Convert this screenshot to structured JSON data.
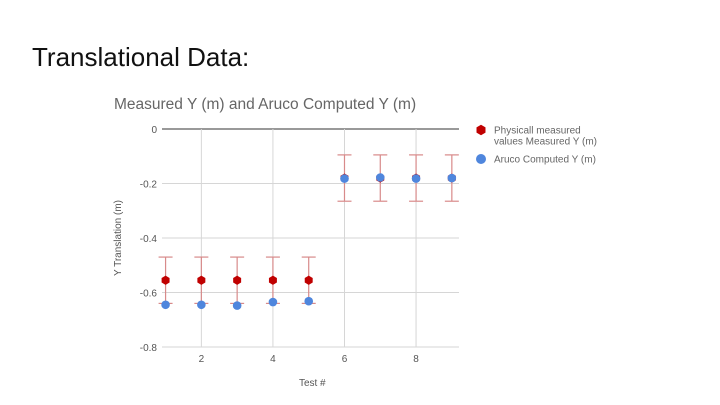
{
  "slide": {
    "title": "Translational Data:"
  },
  "chart_data": {
    "type": "scatter",
    "title": "Measured Y (m) and Aruco Computed Y (m)",
    "xlabel": "Test #",
    "ylabel": "Y Translation (m)",
    "xlim": [
      0.9,
      9.2
    ],
    "ylim": [
      -0.8,
      0
    ],
    "x_ticks": [
      2,
      4,
      6,
      8
    ],
    "y_ticks": [
      0,
      -0.2,
      -0.4,
      -0.6,
      -0.8
    ],
    "y_tick_labels": [
      "0",
      "-0.2",
      "-0.4",
      "-0.6",
      "-0.8"
    ],
    "x": [
      1,
      2,
      3,
      4,
      5,
      6,
      7,
      8,
      9
    ],
    "grid": true,
    "legend_position": "right",
    "series": [
      {
        "name": "Physicall measured values Measured Y (m)",
        "legend_lines": [
          "Physicall measured",
          "values Measured Y (m)"
        ],
        "color": "#c00000",
        "marker": "hexagon",
        "values": [
          -0.555,
          -0.555,
          -0.555,
          -0.555,
          -0.555,
          -0.18,
          -0.18,
          -0.18,
          -0.18
        ],
        "error_bars": {
          "plus_minus": 0.085,
          "color": "#d88a8a"
        }
      },
      {
        "name": "Aruco Computed Y (m)",
        "legend_lines": [
          "Aruco Computed Y (m)"
        ],
        "color": "#4f86dd",
        "marker": "circle",
        "values": [
          -0.645,
          -0.645,
          -0.648,
          -0.635,
          -0.632,
          -0.182,
          -0.178,
          -0.182,
          -0.18
        ]
      }
    ]
  }
}
